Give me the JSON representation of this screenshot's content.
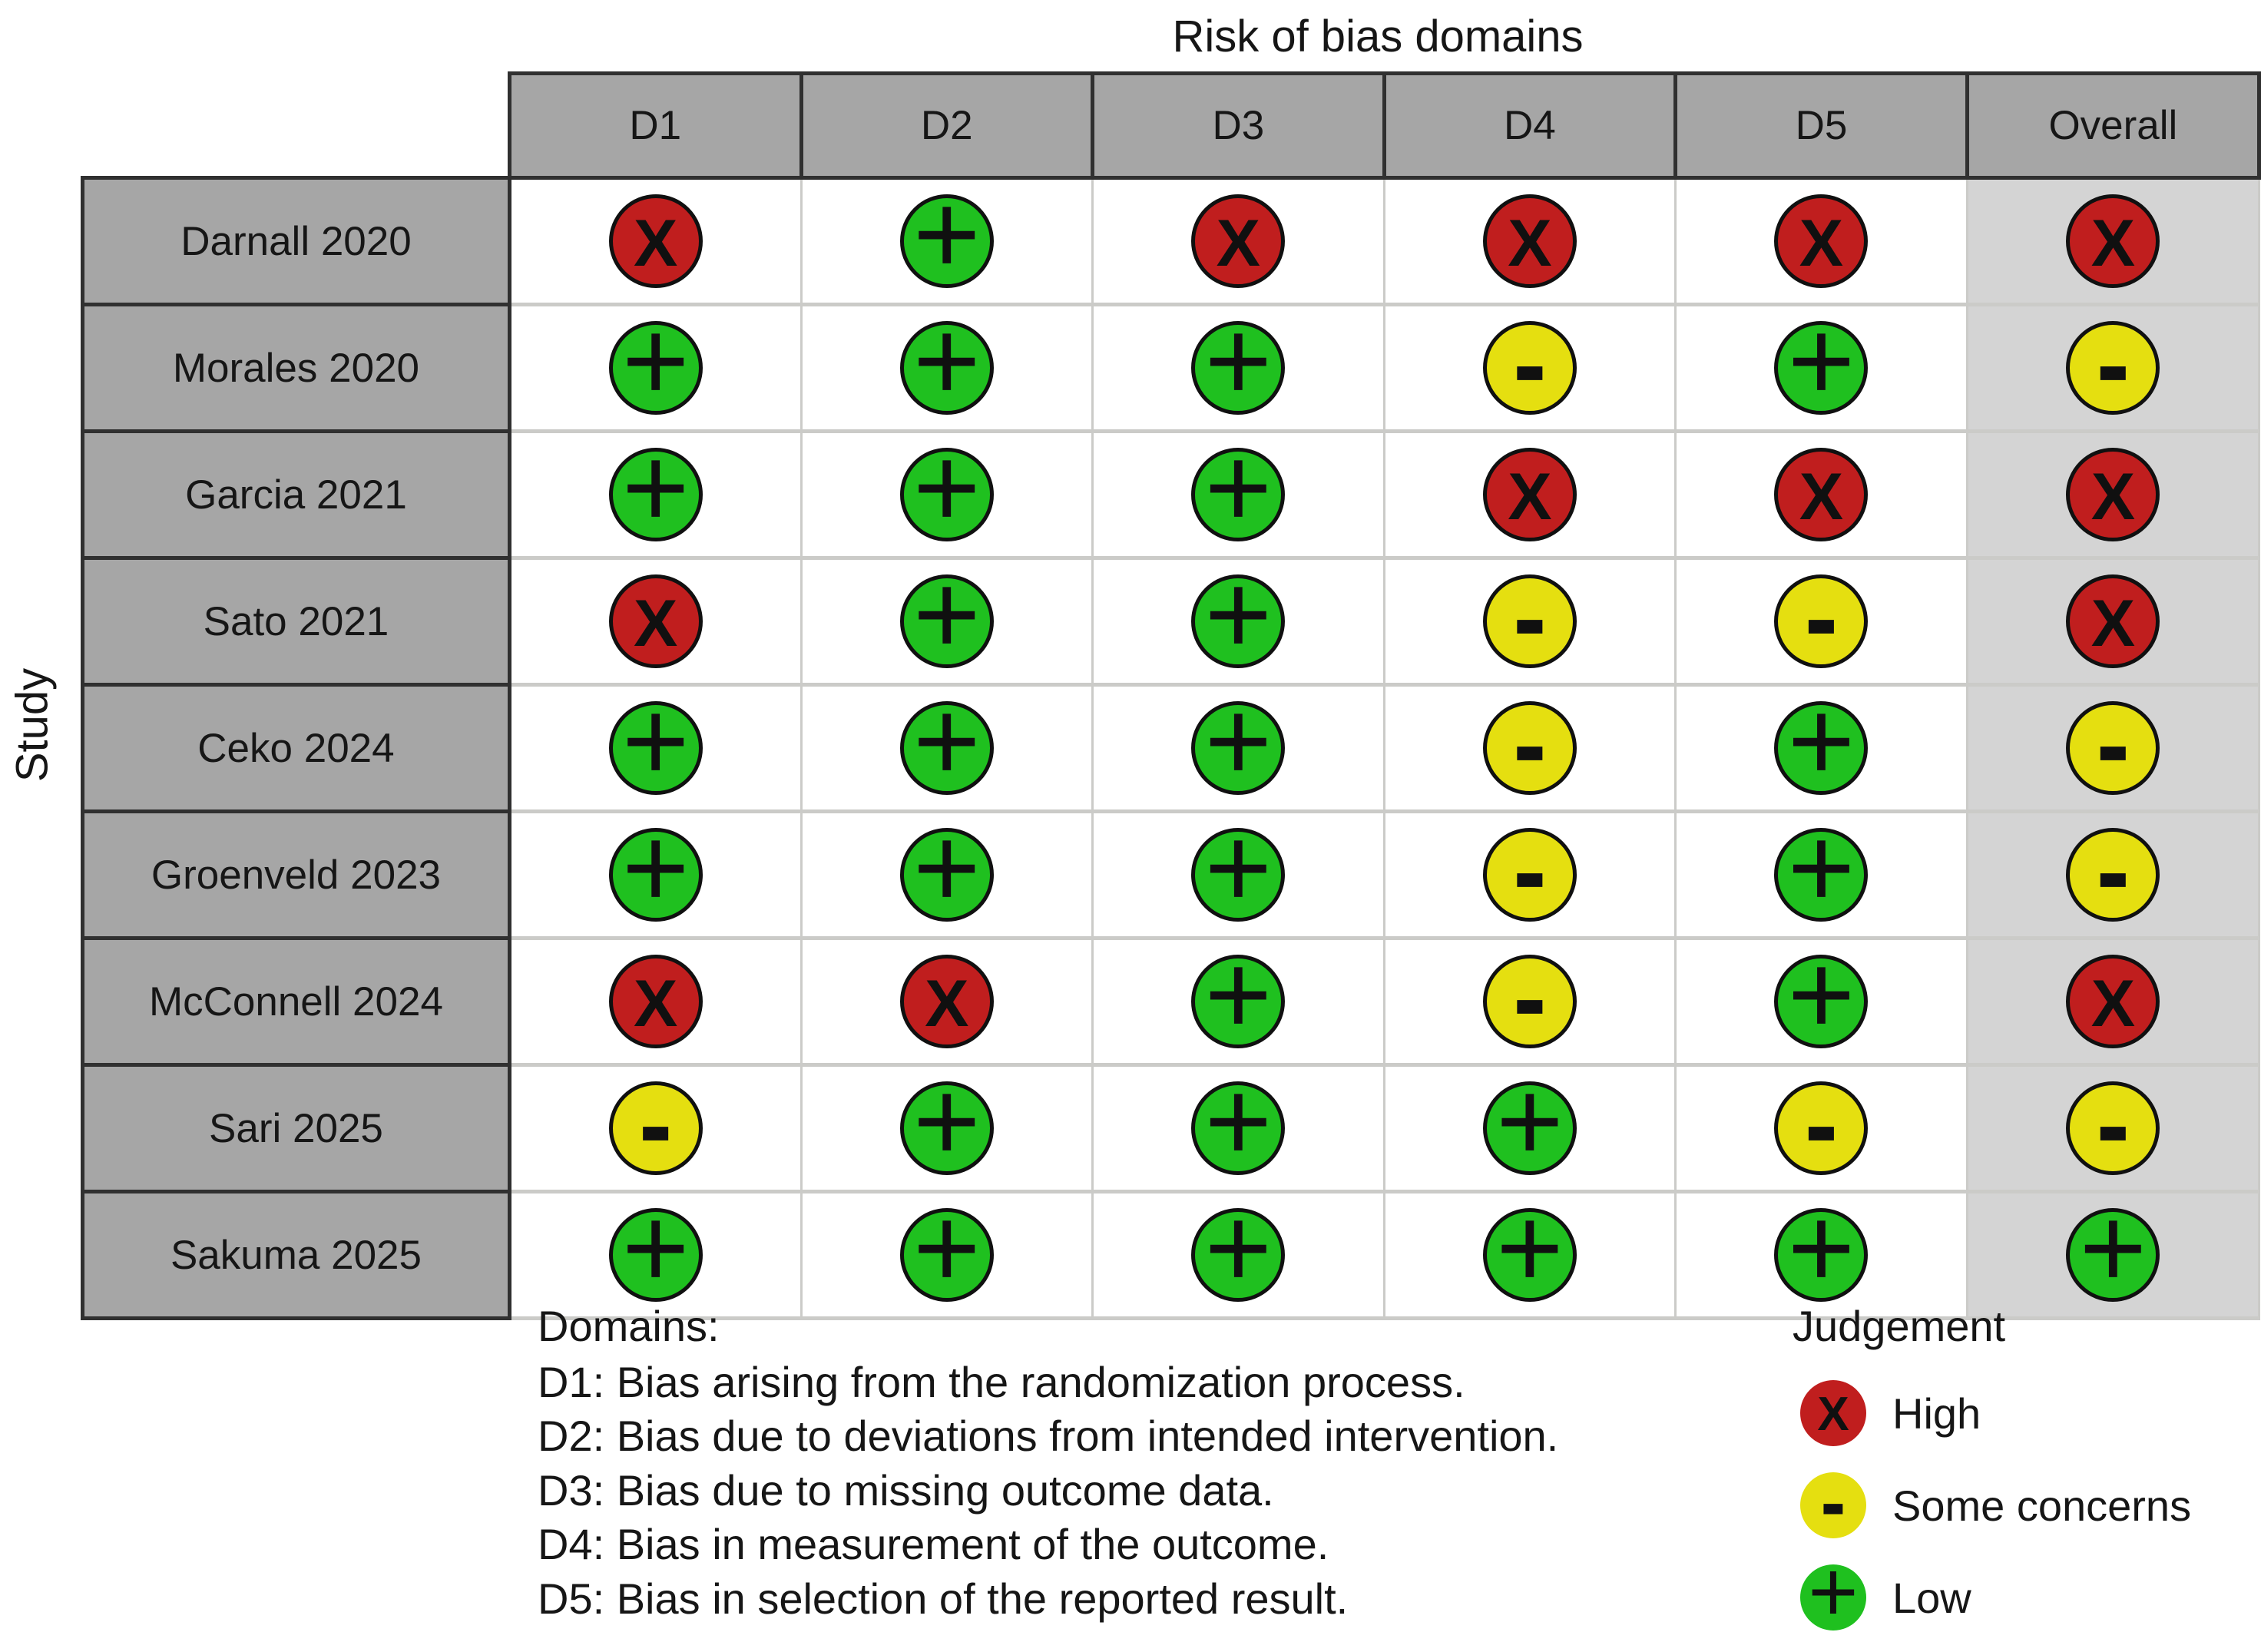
{
  "chart_data": {
    "type": "heatmap",
    "title": "Risk of bias domains",
    "y_axis_label": "Study",
    "x_categories": [
      "D1",
      "D2",
      "D3",
      "D4",
      "D5",
      "Overall"
    ],
    "y_categories": [
      "Darnall 2020",
      "Morales 2020",
      "Garcia 2021",
      "Sato 2021",
      "Ceko 2024",
      "Groenveld 2023",
      "McConnell 2024",
      "Sari 2025",
      "Sakuma 2025"
    ],
    "values": [
      [
        "high",
        "low",
        "high",
        "high",
        "high",
        "high"
      ],
      [
        "low",
        "low",
        "low",
        "concerns",
        "low",
        "concerns"
      ],
      [
        "low",
        "low",
        "low",
        "high",
        "high",
        "high"
      ],
      [
        "high",
        "low",
        "low",
        "concerns",
        "concerns",
        "high"
      ],
      [
        "low",
        "low",
        "low",
        "concerns",
        "low",
        "concerns"
      ],
      [
        "low",
        "low",
        "low",
        "concerns",
        "low",
        "concerns"
      ],
      [
        "high",
        "high",
        "low",
        "concerns",
        "low",
        "high"
      ],
      [
        "concerns",
        "low",
        "low",
        "low",
        "concerns",
        "concerns"
      ],
      [
        "low",
        "low",
        "low",
        "low",
        "low",
        "low"
      ]
    ],
    "value_labels": {
      "high": "High",
      "concerns": "Some concerns",
      "low": "Low"
    },
    "value_symbols": {
      "high": "X",
      "concerns": "-",
      "low": "+"
    },
    "value_colors": {
      "high": "#c01e1e",
      "concerns": "#e5df10",
      "low": "#1fc01f"
    },
    "legend_position": "bottom-right",
    "grid": true
  },
  "legend": {
    "domains_title": "Domains:",
    "domains": [
      "D1: Bias arising from the randomization process.",
      "D2: Bias due to deviations from intended intervention.",
      "D3: Bias due to missing outcome data.",
      "D4: Bias in measurement of the outcome.",
      "D5: Bias in selection of the reported result."
    ],
    "judgement_title": "Judgement",
    "order": [
      "high",
      "concerns",
      "low"
    ]
  },
  "ui_colors": {
    "header_fill": "#a6a6a6",
    "overall_fill": "#d4d4d4",
    "dark_border": "#303030",
    "light_border": "#cbcbc8"
  }
}
